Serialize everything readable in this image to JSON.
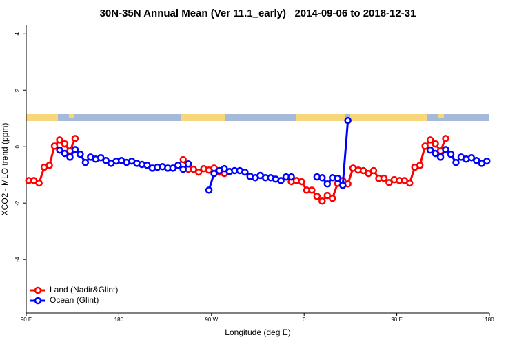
{
  "chart_data": {
    "type": "line",
    "title": "30N-35N Annual Mean (Ver 11.1_early)   2014-09-06 to 2018-12-31",
    "x_label": "Longitude (deg E)",
    "y_label": "XCO2 - MLO trend (ppm)",
    "xlim": [
      90,
      540
    ],
    "xticks": [
      {
        "value": 90,
        "label": "90 E"
      },
      180,
      {
        "value": 270,
        "label": "90 W"
      },
      {
        "value": 360,
        "label": "0"
      },
      {
        "value": 450,
        "label": "90 E"
      },
      {
        "value": 540,
        "label": "180"
      }
    ],
    "ylim": [
      -5.9,
      4.3
    ],
    "yticks": [
      4,
      2,
      0,
      -2,
      -4
    ],
    "legend": "bottom-left",
    "x": [
      92.5,
      97.5,
      102.5,
      107.5,
      112.5,
      117.5,
      122.5,
      127.5,
      132.5,
      137.5,
      142.5,
      147.5,
      152.5,
      157.5,
      162.5,
      167.5,
      172.5,
      177.5,
      182.5,
      187.5,
      192.5,
      197.5,
      202.5,
      207.5,
      212.5,
      217.5,
      222.5,
      227.5,
      232.5,
      237.5,
      242.5,
      247.5,
      252.5,
      257.5,
      262.5,
      267.5,
      272.5,
      277.5,
      282.5,
      287.5,
      292.5,
      297.5,
      302.5,
      307.5,
      312.5,
      317.5,
      322.5,
      327.5,
      332.5,
      337.5,
      342.5,
      347.5,
      352.5,
      357.5,
      362.5,
      367.5,
      372.5,
      377.5,
      382.5,
      387.5,
      392.5,
      397.5,
      402.5,
      407.5,
      412.5,
      417.5,
      422.5,
      427.5,
      432.5,
      437.5,
      442.5,
      447.5,
      452.5,
      457.5,
      462.5,
      467.5,
      472.5,
      477.5,
      482.5,
      487.5,
      492.5,
      497.5,
      502.5,
      507.5,
      512.5,
      517.5,
      522.5,
      527.5,
      532.5,
      537.5
    ],
    "series": [
      {
        "name": "Land (Nadir&Glint)",
        "color": "#ff0000",
        "values": [
          -1.2,
          -1.2,
          -1.29,
          -0.73,
          -0.66,
          0.02,
          0.24,
          0.1,
          -0.15,
          0.29,
          null,
          null,
          null,
          null,
          null,
          null,
          null,
          null,
          null,
          null,
          null,
          null,
          null,
          null,
          null,
          null,
          null,
          null,
          null,
          null,
          -0.46,
          -0.8,
          -0.8,
          -0.9,
          -0.78,
          -0.83,
          -0.76,
          -0.9,
          -0.95,
          null,
          null,
          null,
          null,
          null,
          null,
          null,
          null,
          null,
          null,
          null,
          null,
          -1.24,
          -1.2,
          -1.24,
          -1.54,
          -1.54,
          -1.76,
          -1.93,
          -1.73,
          -1.83,
          -1.3,
          -1.2,
          -1.32,
          -0.76,
          -0.83,
          -0.85,
          -0.95,
          -0.85,
          -1.12,
          -1.12,
          -1.27,
          -1.17,
          -1.2,
          -1.2,
          -1.29,
          -0.73,
          -0.66,
          0.02,
          0.24,
          0.1,
          -0.15,
          0.29,
          null,
          null,
          null,
          null,
          null,
          null,
          null,
          null
        ]
      },
      {
        "name": "Ocean (Glint)",
        "color": "#0000ff",
        "values": [
          null,
          null,
          null,
          null,
          null,
          null,
          -0.12,
          -0.24,
          -0.37,
          -0.1,
          -0.27,
          -0.56,
          -0.37,
          -0.44,
          -0.39,
          -0.49,
          -0.59,
          -0.51,
          -0.49,
          -0.56,
          -0.51,
          -0.59,
          -0.63,
          -0.66,
          -0.76,
          -0.73,
          -0.71,
          -0.76,
          -0.76,
          -0.66,
          -0.8,
          -0.61,
          null,
          null,
          null,
          -1.54,
          -0.95,
          -0.85,
          -0.78,
          -0.88,
          -0.85,
          -0.85,
          -0.9,
          -1.05,
          -1.1,
          -1.02,
          -1.1,
          -1.1,
          -1.15,
          -1.2,
          -1.07,
          -1.07,
          null,
          null,
          null,
          null,
          -1.07,
          -1.1,
          -1.32,
          -1.1,
          -1.12,
          -1.37,
          0.93,
          null,
          null,
          null,
          null,
          null,
          null,
          null,
          null,
          null,
          null,
          null,
          null,
          null,
          null,
          null,
          -0.12,
          -0.24,
          -0.37,
          -0.1,
          -0.27,
          -0.56,
          -0.37,
          -0.44,
          -0.39,
          -0.49,
          -0.59,
          -0.51
        ]
      }
    ]
  }
}
